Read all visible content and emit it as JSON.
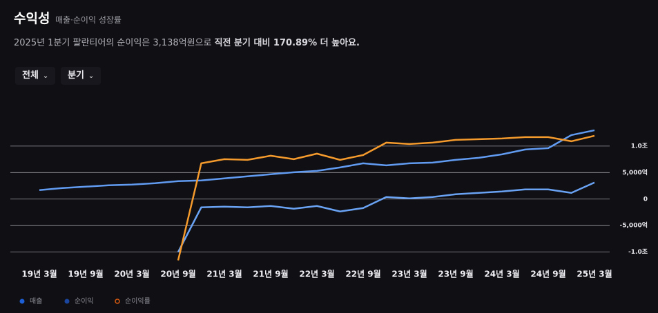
{
  "header": {
    "title": "수익성",
    "subtitle": "매출·순이익 성장률"
  },
  "description": {
    "text": "2025년 1분기 팔란티어의 순이익은 3,138억원으로 ",
    "highlight": "직전 분기 대비 170.89% 더 높아요."
  },
  "filters": [
    "전체",
    "분기"
  ],
  "chart_data": {
    "type": "line",
    "categories": [
      "19년 3월",
      null,
      "19년 9월",
      null,
      "20년 3월",
      null,
      "20년 9월",
      null,
      "21년 3월",
      null,
      "21년 9월",
      null,
      "22년 3월",
      null,
      "22년 9월",
      null,
      "23년 3월",
      null,
      "23년 9월",
      null,
      "24년 3월",
      null,
      "24년 9월",
      null,
      "25년 3월"
    ],
    "series": [
      {
        "name": "매출",
        "color": "#619cf2",
        "legend_color": "#1d5fd6",
        "values": [
          1690,
          2080,
          2340,
          2600,
          2730,
          2990,
          3380,
          3510,
          3900,
          4290,
          4680,
          5060,
          5320,
          5970,
          6750,
          6360,
          6750,
          6880,
          7400,
          7790,
          8440,
          9350,
          9610,
          12080,
          12990
        ]
      },
      {
        "name": "순이익",
        "color": "#6aa3f4",
        "legend_color": "#1a46a0",
        "values": [
          null,
          null,
          null,
          null,
          null,
          null,
          -10000,
          -1560,
          -1430,
          -1560,
          -1300,
          -1820,
          -1300,
          -2340,
          -1690,
          390,
          130,
          390,
          910,
          1170,
          1430,
          1820,
          1820,
          1170,
          3120
        ]
      },
      {
        "name": "순이익률",
        "color": "#f59a2c",
        "legend_color": "#d85a10",
        "values": [
          null,
          null,
          null,
          null,
          null,
          null,
          -11560,
          6750,
          7530,
          7400,
          8180,
          7530,
          8570,
          7400,
          8310,
          10650,
          10390,
          10650,
          11170,
          11300,
          11430,
          11690,
          11690,
          10910,
          11950
        ]
      }
    ],
    "ylim": [
      -12000,
      13500
    ],
    "yticks": [
      {
        "value": 10000,
        "label": "1.0조"
      },
      {
        "value": 5000,
        "label": "5,000억"
      },
      0,
      {
        "value": -5000,
        "label": "-5,000억"
      },
      {
        "value": -10000,
        "label": "-1.0조"
      }
    ],
    "grid": true
  }
}
